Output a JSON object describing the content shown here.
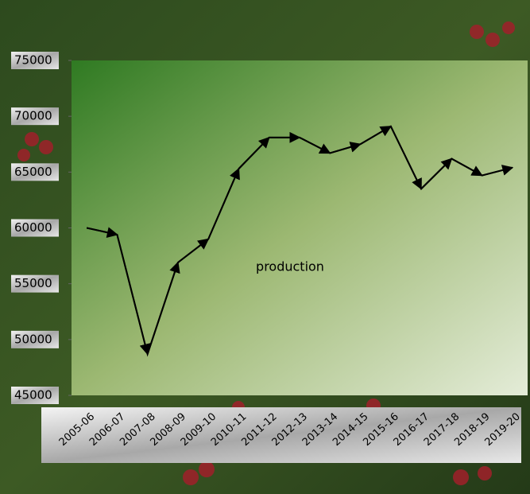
{
  "chart_data": {
    "type": "line",
    "categories": [
      "2005-06",
      "2006-07",
      "2007-08",
      "2008-09",
      "2009-10",
      "2010-11",
      "2011-12",
      "2012-13",
      "2013-14",
      "2014-15",
      "2015-16",
      "2016-17",
      "2017-18",
      "2018-19",
      "2019-20"
    ],
    "series": [
      {
        "name": "production",
        "color": "#000000",
        "values": [
          60000,
          59400,
          48700,
          56900,
          59000,
          65300,
          68100,
          68100,
          66700,
          67500,
          69100,
          63500,
          66200,
          64700,
          65400
        ]
      }
    ],
    "ylim": [
      45000,
      75000
    ],
    "yticks": [
      45000,
      50000,
      55000,
      60000,
      65000,
      70000,
      75000
    ]
  }
}
